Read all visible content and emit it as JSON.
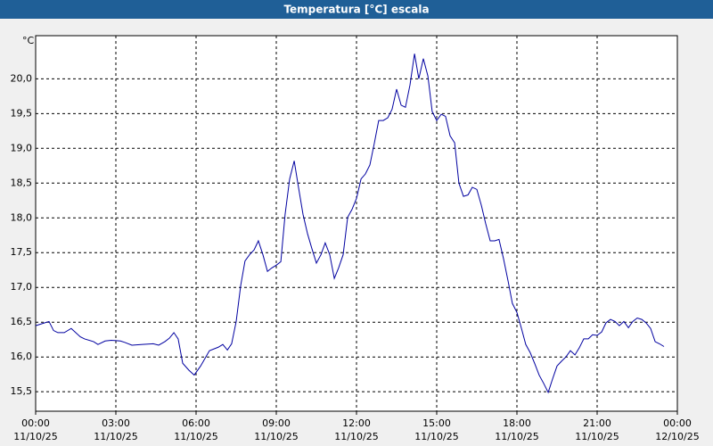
{
  "chart_data": {
    "type": "line",
    "title": "Temperatura [°C] escala",
    "ylabel": "°C",
    "x": [
      0,
      0.33,
      0.5,
      0.67,
      0.83,
      1.07,
      1.33,
      1.67,
      1.83,
      2.17,
      2.33,
      2.6,
      2.83,
      3.17,
      3.33,
      3.6,
      4,
      4.4,
      4.6,
      4.83,
      5,
      5.17,
      5.33,
      5.5,
      5.73,
      5.93,
      6.17,
      6.5,
      6.83,
      7,
      7.17,
      7.33,
      7.5,
      7.67,
      7.83,
      8,
      8.17,
      8.33,
      8.5,
      8.67,
      8.83,
      9,
      9.17,
      9.33,
      9.5,
      9.67,
      9.83,
      10,
      10.17,
      10.33,
      10.5,
      10.67,
      10.83,
      11,
      11.17,
      11.33,
      11.5,
      11.67,
      11.83,
      12,
      12.17,
      12.33,
      12.5,
      12.67,
      12.83,
      13,
      13.17,
      13.33,
      13.5,
      13.67,
      13.83,
      14,
      14.17,
      14.33,
      14.5,
      14.67,
      14.83,
      15,
      15.17,
      15.33,
      15.5,
      15.67,
      15.83,
      16,
      16.17,
      16.33,
      16.5,
      16.67,
      16.83,
      17,
      17.17,
      17.33,
      17.5,
      17.67,
      17.83,
      18,
      18.17,
      18.33,
      18.5,
      18.67,
      18.83,
      19,
      19.17,
      19.33,
      19.5,
      19.67,
      19.83,
      20,
      20.17,
      20.33,
      20.5,
      20.67,
      20.83,
      21,
      21.17,
      21.33,
      21.5,
      21.67,
      21.83,
      22,
      22.17,
      22.33,
      22.5,
      22.67,
      22.83,
      23,
      23.17,
      23.33,
      23.5
    ],
    "values": [
      16.45,
      16.49,
      16.51,
      16.38,
      16.35,
      16.35,
      16.41,
      16.29,
      16.26,
      16.22,
      16.18,
      16.23,
      16.24,
      16.23,
      16.21,
      16.17,
      16.18,
      16.19,
      16.17,
      16.22,
      16.27,
      16.35,
      16.26,
      15.91,
      15.81,
      15.74,
      15.87,
      16.09,
      16.14,
      16.18,
      16.1,
      16.19,
      16.51,
      17.03,
      17.38,
      17.47,
      17.54,
      17.67,
      17.47,
      17.23,
      17.28,
      17.32,
      17.37,
      18.05,
      18.56,
      18.82,
      18.44,
      18.05,
      17.77,
      17.56,
      17.35,
      17.47,
      17.64,
      17.47,
      17.13,
      17.28,
      17.47,
      18.01,
      18.12,
      18.28,
      18.56,
      18.63,
      18.76,
      19.08,
      19.4,
      19.4,
      19.44,
      19.56,
      19.85,
      19.62,
      19.59,
      19.91,
      20.36,
      20.0,
      20.29,
      20.04,
      19.53,
      19.4,
      19.49,
      19.46,
      19.18,
      19.08,
      18.5,
      18.31,
      18.33,
      18.44,
      18.41,
      18.18,
      17.92,
      17.67,
      17.67,
      17.69,
      17.41,
      17.09,
      16.77,
      16.64,
      16.41,
      16.18,
      16.06,
      15.9,
      15.74,
      15.62,
      15.49,
      15.68,
      15.87,
      15.94,
      16.0,
      16.09,
      16.03,
      16.13,
      16.26,
      16.26,
      16.32,
      16.31,
      16.36,
      16.49,
      16.54,
      16.51,
      16.45,
      16.51,
      16.42,
      16.51,
      16.56,
      16.54,
      16.49,
      16.41,
      16.22,
      16.19,
      16.15
    ],
    "color": "#0000a0",
    "xlim": [
      0,
      24
    ],
    "xticks": [
      {
        "value": 0,
        "label": [
          "00:00",
          "11/10/25"
        ]
      },
      {
        "value": 3,
        "label": [
          "03:00",
          "11/10/25"
        ]
      },
      {
        "value": 6,
        "label": [
          "06:00",
          "11/10/25"
        ]
      },
      {
        "value": 9,
        "label": [
          "09:00",
          "11/10/25"
        ]
      },
      {
        "value": 12,
        "label": [
          "12:00",
          "11/10/25"
        ]
      },
      {
        "value": 15,
        "label": [
          "15:00",
          "11/10/25"
        ]
      },
      {
        "value": 18,
        "label": [
          "18:00",
          "11/10/25"
        ]
      },
      {
        "value": 21,
        "label": [
          "21:00",
          "11/10/25"
        ]
      },
      {
        "value": 24,
        "label": [
          "00:00",
          "12/10/25"
        ]
      }
    ],
    "ylim": [
      15.22,
      20.62
    ],
    "yticks": [
      {
        "value": 15.5,
        "label": "15,5"
      },
      {
        "value": 16,
        "label": "16,0"
      },
      {
        "value": 16.5,
        "label": "16,5"
      },
      {
        "value": 17,
        "label": "17,0"
      },
      {
        "value": 17.5,
        "label": "17,5"
      },
      {
        "value": 18,
        "label": "18,0"
      },
      {
        "value": 18.5,
        "label": "18,5"
      },
      {
        "value": 19,
        "label": "19,0"
      },
      {
        "value": 19.5,
        "label": "19,5"
      },
      {
        "value": 20,
        "label": "20,0"
      }
    ],
    "grid": true
  }
}
